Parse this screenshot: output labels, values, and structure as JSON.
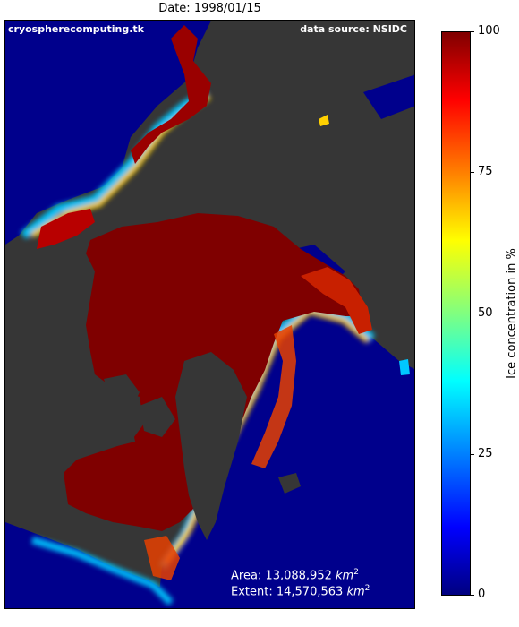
{
  "title": "Date: 1998/01/15",
  "credit_left": "cryospherecomputing.tk",
  "credit_right": "data source: NSIDC",
  "area_label": "Area: 13,088,952",
  "extent_label": "Extent: 14,570,563",
  "unit": "km",
  "unit_exp": "2",
  "colorbar": {
    "label": "Ice concentration in %",
    "ticks": [
      "0",
      "25",
      "50",
      "75",
      "100"
    ],
    "min": 0,
    "max": 100,
    "colormap": "jet"
  },
  "colors": {
    "ocean": "#00008c",
    "land": "#363636",
    "ice_high": "#7f0000"
  }
}
